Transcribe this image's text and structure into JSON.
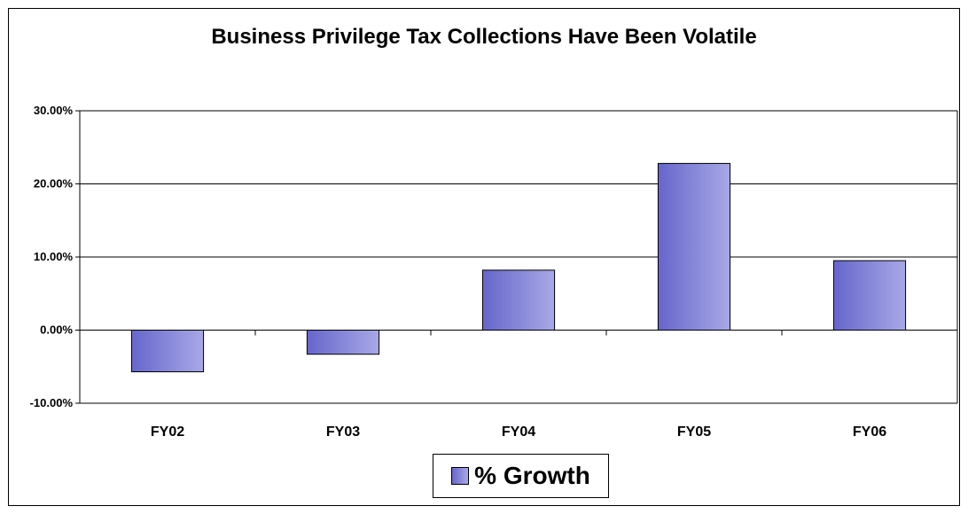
{
  "chart_data": {
    "type": "bar",
    "title": "Business Privilege Tax Collections Have Been Volatile",
    "categories": [
      "FY02",
      "FY03",
      "FY04",
      "FY05",
      "FY06"
    ],
    "series": [
      {
        "name": "% Growth",
        "values": [
          -5.7,
          -3.3,
          8.2,
          22.8,
          9.5
        ]
      }
    ],
    "ylim": [
      -10,
      30
    ],
    "yticks": [
      30,
      20,
      10,
      0,
      -10
    ],
    "ytick_labels": [
      "30.00%",
      "20.00%",
      "10.00%",
      "0.00%",
      "-10.00%"
    ],
    "grid": true,
    "legend_position": "bottom-center",
    "colors": {
      "bar_start": "#6666cc",
      "bar_end": "#a8a8e6",
      "border": "#000000"
    }
  }
}
